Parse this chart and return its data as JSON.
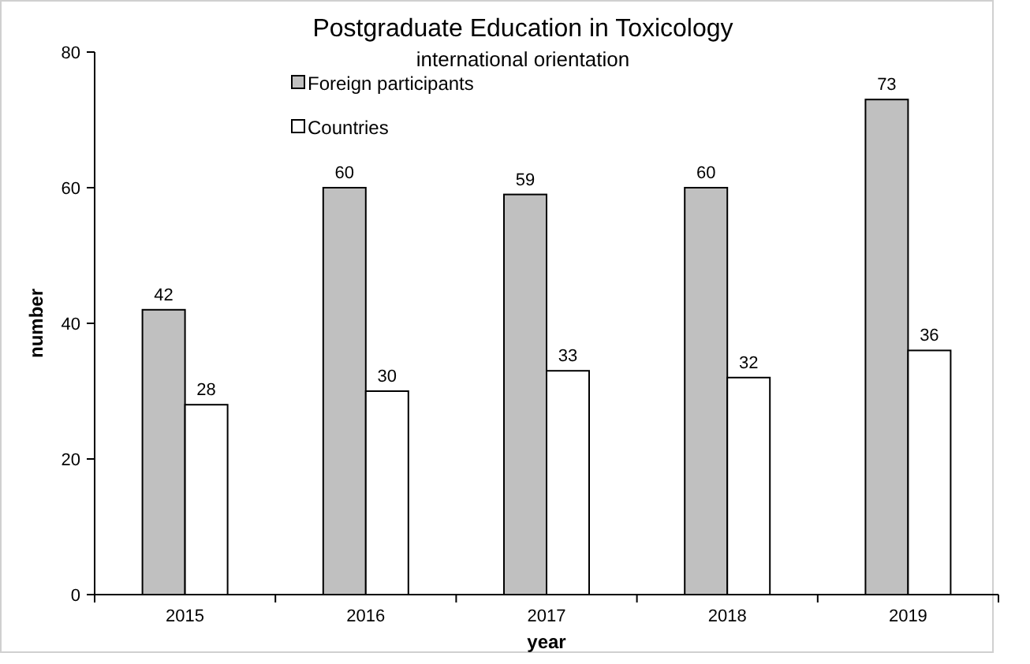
{
  "chart_data": {
    "type": "bar",
    "title": "Postgraduate Education in Toxicology",
    "subtitle": "international orientation",
    "xlabel": "year",
    "ylabel": "number",
    "categories": [
      "2015",
      "2016",
      "2017",
      "2018",
      "2019"
    ],
    "series": [
      {
        "name": "Foreign participants",
        "color": "#c0c0c0",
        "values": [
          42,
          60,
          59,
          60,
          73
        ]
      },
      {
        "name": "Countries",
        "color": "#ffffff",
        "values": [
          28,
          30,
          33,
          32,
          36
        ]
      }
    ],
    "ylim": [
      0,
      80
    ],
    "yticks": [
      0,
      20,
      40,
      60,
      80
    ],
    "grid": false,
    "legend": "top left",
    "data_labels": true
  }
}
